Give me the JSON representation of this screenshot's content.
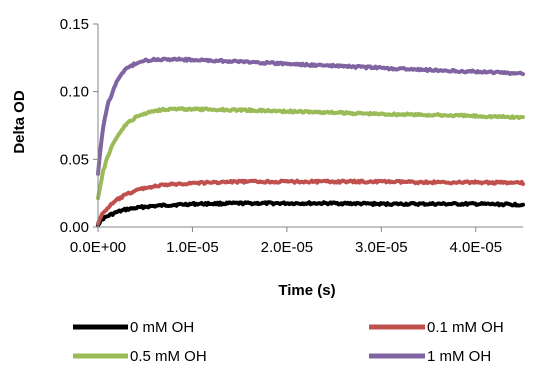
{
  "chart_data": {
    "type": "line",
    "title": "",
    "xlabel": "Time (s)",
    "ylabel": "Delta OD",
    "xlim": [
      0,
      4.5e-05
    ],
    "ylim": [
      0,
      0.15
    ],
    "x_ticks": [
      0,
      1e-05,
      2e-05,
      3e-05,
      4e-05
    ],
    "x_tick_labels": [
      "0.0E+00",
      "1.0E-05",
      "2.0E-05",
      "3.0E-05",
      "4.0E-05"
    ],
    "y_ticks": [
      0,
      0.05,
      0.1,
      0.15
    ],
    "y_tick_labels": [
      "0.00",
      "0.05",
      "0.10",
      "0.15"
    ],
    "grid": false,
    "legend_position": "bottom",
    "series": [
      {
        "name": "0 mM OH",
        "color": "#000000",
        "x": [
          0,
          5e-07,
          1e-06,
          2e-06,
          3e-06,
          4e-06,
          5e-06,
          7e-06,
          1e-05,
          1.5e-05,
          2e-05,
          2.5e-05,
          3e-05,
          3.5e-05,
          4e-05,
          4.5e-05
        ],
        "y": [
          0.002,
          0.006,
          0.008,
          0.011,
          0.013,
          0.014,
          0.015,
          0.016,
          0.017,
          0.0175,
          0.0175,
          0.0175,
          0.017,
          0.017,
          0.017,
          0.0165
        ]
      },
      {
        "name": "0.1 mM OH",
        "color": "#c0504d",
        "x": [
          0,
          5e-07,
          1e-06,
          2e-06,
          3e-06,
          4e-06,
          5e-06,
          7e-06,
          1e-05,
          1.5e-05,
          2e-05,
          2.5e-05,
          3e-05,
          3.5e-05,
          4e-05,
          4.5e-05
        ],
        "y": [
          0.003,
          0.01,
          0.014,
          0.02,
          0.024,
          0.027,
          0.029,
          0.031,
          0.0325,
          0.0335,
          0.0335,
          0.0335,
          0.0335,
          0.033,
          0.033,
          0.0325
        ]
      },
      {
        "name": "0.5 mM OH",
        "color": "#9bbb59",
        "x": [
          0,
          5e-07,
          1e-06,
          2e-06,
          3e-06,
          4e-06,
          5e-06,
          6e-06,
          7e-06,
          8e-06,
          1e-05,
          1.5e-05,
          2e-05,
          2.5e-05,
          3e-05,
          3.5e-05,
          4e-05,
          4.5e-05
        ],
        "y": [
          0.022,
          0.04,
          0.052,
          0.067,
          0.076,
          0.081,
          0.084,
          0.086,
          0.087,
          0.0872,
          0.087,
          0.0865,
          0.0855,
          0.0845,
          0.0835,
          0.0828,
          0.082,
          0.081
        ]
      },
      {
        "name": "1 mM OH",
        "color": "#8064a2",
        "x": [
          0,
          5e-07,
          1e-06,
          2e-06,
          3e-06,
          4e-06,
          5e-06,
          6e-06,
          7e-06,
          8e-06,
          1e-05,
          1.5e-05,
          2e-05,
          2.5e-05,
          3e-05,
          3.5e-05,
          4e-05,
          4.5e-05
        ],
        "y": [
          0.04,
          0.072,
          0.09,
          0.108,
          0.117,
          0.121,
          0.123,
          0.1237,
          0.124,
          0.124,
          0.1235,
          0.1222,
          0.1205,
          0.119,
          0.1175,
          0.116,
          0.1148,
          0.1135
        ]
      }
    ]
  }
}
